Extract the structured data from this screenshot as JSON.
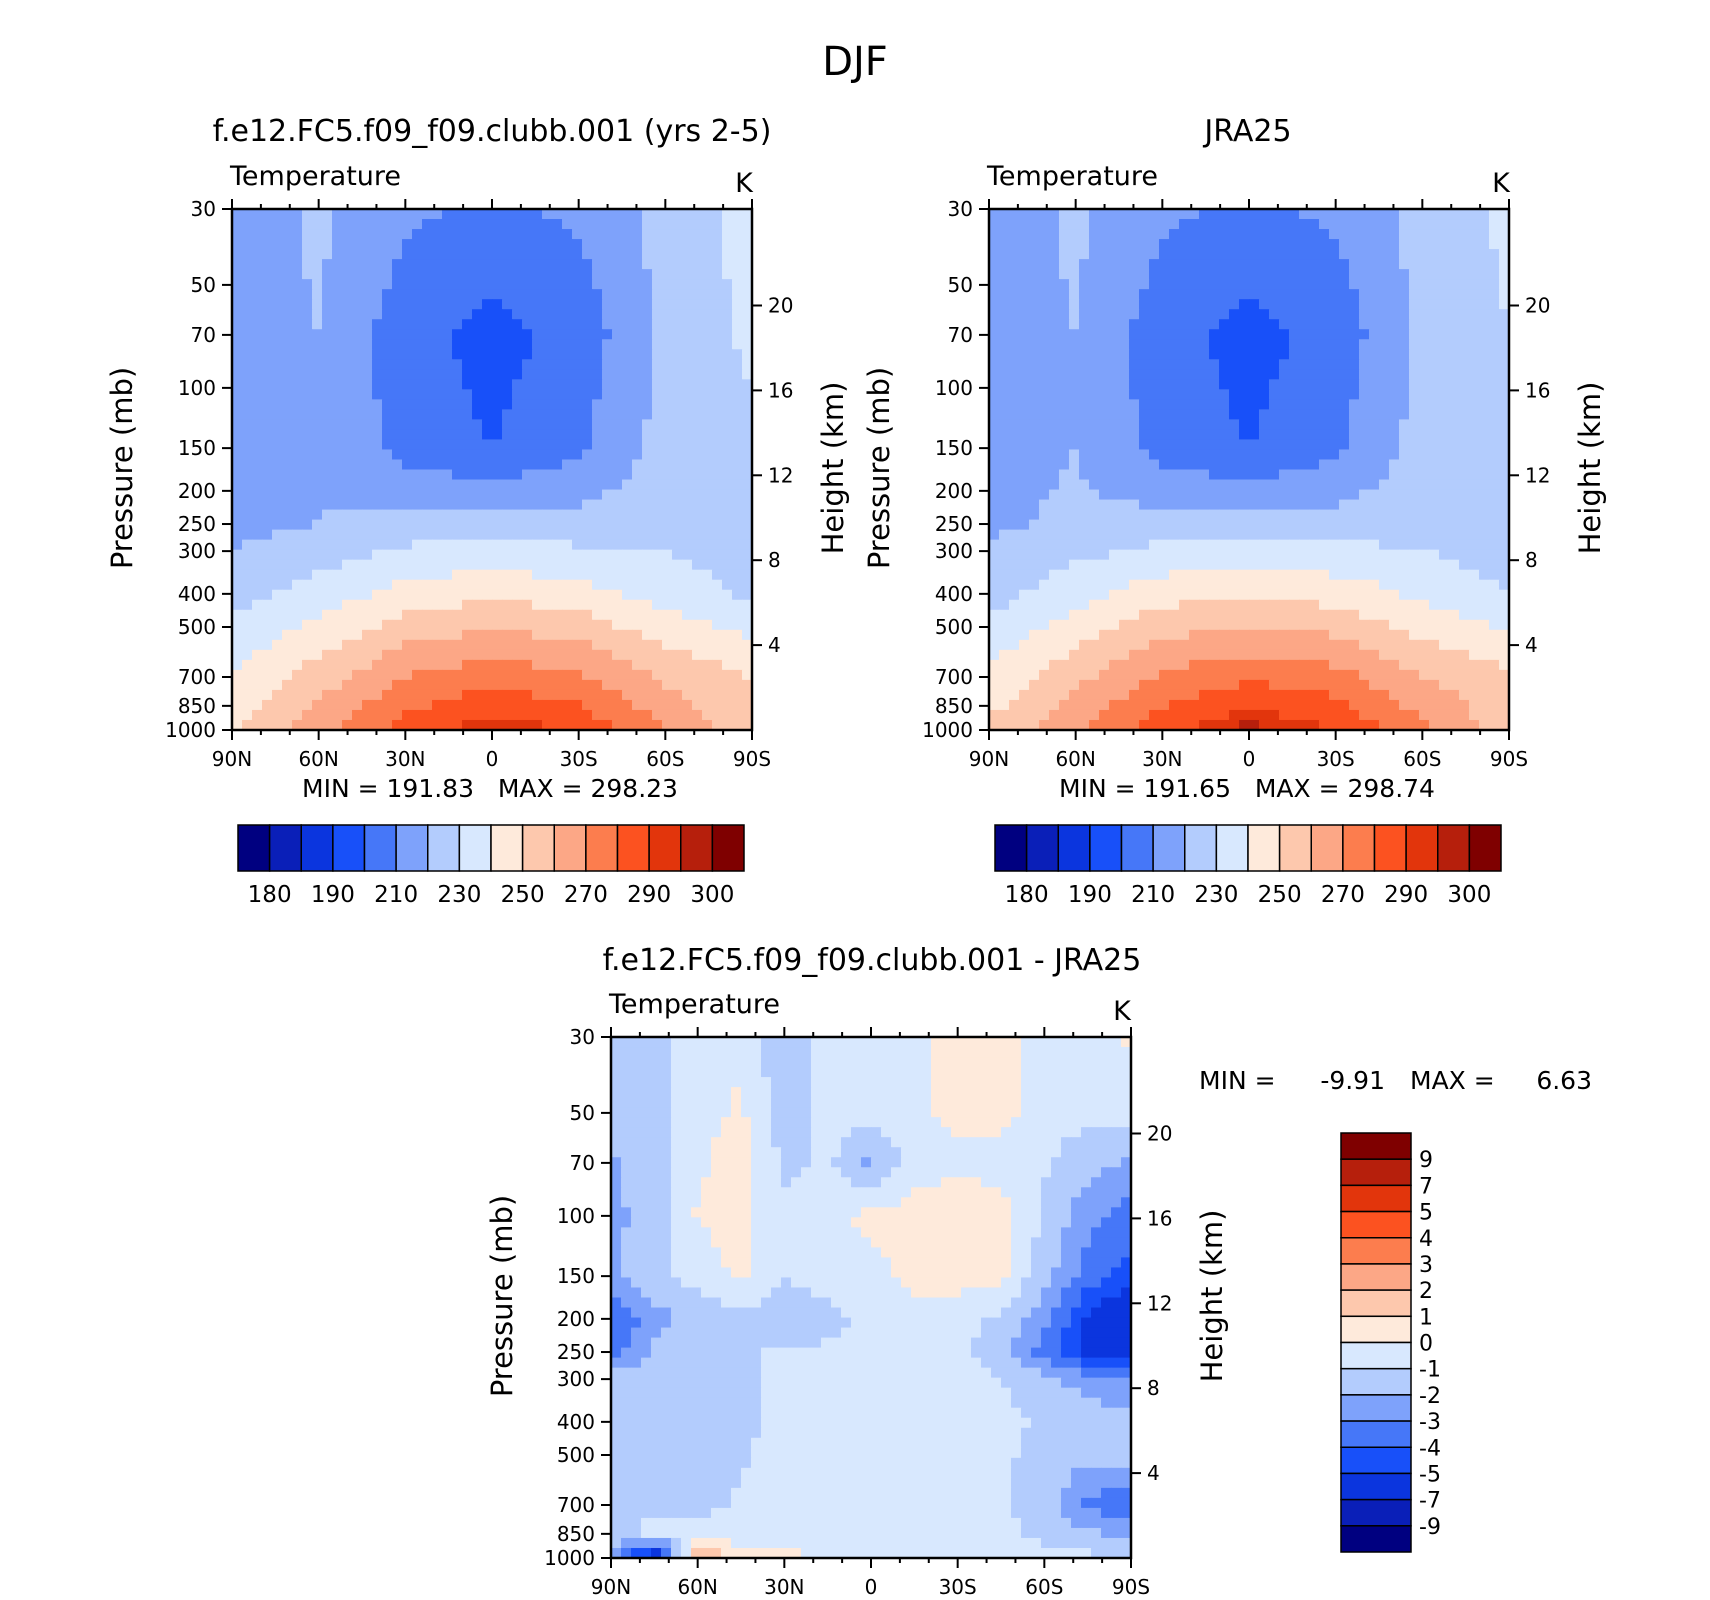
{
  "figure": {
    "title": "DJF"
  },
  "colors": {
    "abs": [
      "#000080",
      "#0a1fb8",
      "#0b35de",
      "#1850f9",
      "#4677f8",
      "#7ea2fb",
      "#b3ccfd",
      "#d8e8fe",
      "#feeadb",
      "#fdc8ad",
      "#fca786",
      "#fc7d4e",
      "#fc5220",
      "#e2350c",
      "#b61f0c",
      "#7f0000"
    ],
    "diff": [
      "#000080",
      "#0a1fb8",
      "#0b35de",
      "#1850f9",
      "#4677f8",
      "#7ea2fb",
      "#b3ccfd",
      "#d8e8fe",
      "#feeadb",
      "#fdc8ad",
      "#fca786",
      "#fc7d4e",
      "#fc5220",
      "#e2350c",
      "#b61f0c",
      "#7f0000"
    ]
  },
  "chart_data": [
    {
      "type": "heatmap",
      "title": "f.e12.FC5.f09_f09.clubb.001 (yrs 2-5)",
      "subtitle_left": "Temperature",
      "units": "K",
      "xlabel": "",
      "ylabel": "Pressure (mb)",
      "ylabel_right": "Height (km)",
      "x_ticks": [
        "90N",
        "60N",
        "30N",
        "0",
        "30S",
        "60S",
        "90S"
      ],
      "y_ticks": [
        "30",
        "50",
        "70",
        "100",
        "150",
        "200",
        "250",
        "300",
        "400",
        "500",
        "700",
        "850",
        "1000"
      ],
      "y_right_ticks": [
        "20",
        "16",
        "12",
        "8",
        "4"
      ],
      "stats": "MIN = 191.83   MAX = 298.23",
      "colorbar_labels": [
        "180",
        "190",
        "210",
        "230",
        "250",
        "270",
        "290",
        "300"
      ],
      "grid": {
        "lat": [
          90,
          60,
          30,
          0,
          -30,
          -60,
          -90
        ],
        "levels_mb": [
          30,
          70,
          150,
          250,
          400,
          700,
          1000
        ],
        "values": [
          [
            214,
            222,
            212,
            208,
            212,
            224,
            234
          ],
          [
            214,
            220,
            204,
            196,
            204,
            222,
            232
          ],
          [
            216,
            220,
            206,
            200,
            208,
            224,
            228
          ],
          [
            217,
            220,
            224,
            224,
            224,
            226,
            224
          ],
          [
            226,
            234,
            244,
            248,
            244,
            236,
            228
          ],
          [
            240,
            255,
            270,
            276,
            272,
            258,
            250
          ],
          [
            250,
            266,
            284,
            296,
            288,
            270,
            252
          ]
        ]
      }
    },
    {
      "type": "heatmap",
      "title": "JRA25",
      "subtitle_left": "Temperature",
      "units": "K",
      "xlabel": "",
      "ylabel": "Pressure (mb)",
      "ylabel_right": "Height (km)",
      "x_ticks": [
        "90N",
        "60N",
        "30N",
        "0",
        "30S",
        "60S",
        "90S"
      ],
      "y_ticks": [
        "30",
        "50",
        "70",
        "100",
        "150",
        "200",
        "250",
        "300",
        "400",
        "500",
        "700",
        "850",
        "1000"
      ],
      "y_right_ticks": [
        "20",
        "16",
        "12",
        "8",
        "4"
      ],
      "stats": "MIN = 191.65   MAX = 298.74",
      "colorbar_labels": [
        "180",
        "190",
        "210",
        "230",
        "250",
        "270",
        "290",
        "300"
      ],
      "grid": {
        "lat": [
          90,
          60,
          30,
          0,
          -30,
          -60,
          -90
        ],
        "levels_mb": [
          30,
          70,
          150,
          250,
          400,
          700,
          1000
        ],
        "values": [
          [
            214,
            222,
            212,
            208,
            212,
            224,
            232
          ],
          [
            214,
            220,
            204,
            196,
            204,
            222,
            230
          ],
          [
            216,
            220,
            206,
            200,
            208,
            224,
            228
          ],
          [
            218,
            222,
            224,
            224,
            224,
            226,
            222
          ],
          [
            226,
            236,
            246,
            248,
            246,
            238,
            230
          ],
          [
            242,
            257,
            272,
            278,
            274,
            260,
            252
          ],
          [
            252,
            268,
            286,
            298,
            290,
            272,
            255
          ]
        ]
      }
    },
    {
      "type": "heatmap",
      "title": "f.e12.FC5.f09_f09.clubb.001 - JRA25",
      "subtitle_left": "Temperature",
      "units": "K",
      "xlabel": "",
      "ylabel": "Pressure (mb)",
      "ylabel_right": "Height (km)",
      "x_ticks": [
        "90N",
        "60N",
        "30N",
        "0",
        "30S",
        "60S",
        "90S"
      ],
      "y_ticks": [
        "30",
        "50",
        "70",
        "100",
        "150",
        "200",
        "250",
        "300",
        "400",
        "500",
        "700",
        "850",
        "1000"
      ],
      "y_right_ticks": [
        "20",
        "16",
        "12",
        "8",
        "4"
      ],
      "stats_min_label": "MIN =",
      "stats_min": "-9.91",
      "stats_max_label": "MAX =",
      "stats_max": "6.63",
      "colorbar_labels": [
        "9",
        "7",
        "5",
        "4",
        "3",
        "2",
        "1",
        "0",
        "-1",
        "-2",
        "-3",
        "-4",
        "-5",
        "-7",
        "-9"
      ],
      "grid": {
        "lat": [
          90,
          75,
          60,
          45,
          30,
          15,
          0,
          -15,
          -30,
          -45,
          -60,
          -75,
          -90
        ],
        "levels_mb": [
          30,
          50,
          70,
          100,
          150,
          200,
          250,
          300,
          400,
          500,
          700,
          850,
          1000
        ],
        "values": [
          [
            -1.5,
            -1.2,
            -0.5,
            -0.3,
            -1.8,
            -0.6,
            -0.4,
            -0.2,
            0.4,
            0.2,
            -0.3,
            -0.4,
            0.2
          ],
          [
            -1.6,
            -1.3,
            -0.4,
            0.2,
            -1.6,
            -0.7,
            -0.6,
            -0.2,
            0.3,
            0.3,
            -0.5,
            -0.8,
            -0.6
          ],
          [
            -2.1,
            -1.4,
            -0.2,
            0.6,
            -1.2,
            -0.8,
            -2.2,
            -0.5,
            -0.2,
            -0.4,
            -0.9,
            -1.6,
            -2.2
          ],
          [
            -2.3,
            -1.5,
            0.1,
            0.4,
            -0.8,
            -0.4,
            0.3,
            0.5,
            0.6,
            0.4,
            -1.2,
            -2.6,
            -3.5
          ],
          [
            -2.2,
            -1.3,
            -0.6,
            0.2,
            -1.0,
            -0.6,
            -0.4,
            0.3,
            0.4,
            0.2,
            -1.6,
            -3.4,
            -4.5
          ],
          [
            -4.2,
            -2.3,
            -1.8,
            -1.2,
            -1.6,
            -1.4,
            -0.6,
            -0.4,
            -0.6,
            -1.2,
            -2.6,
            -5.2,
            -6.5
          ],
          [
            -3.6,
            -1.8,
            -1.2,
            -1.0,
            -1.0,
            -0.8,
            -0.4,
            -0.5,
            -0.8,
            -1.6,
            -3.4,
            -5.4,
            -6.2
          ],
          [
            -1.6,
            -1.1,
            -1.0,
            -1.2,
            -0.8,
            -0.6,
            -0.6,
            -0.6,
            -0.6,
            -1.0,
            -1.6,
            -2.6,
            -3.2
          ],
          [
            -1.4,
            -1.5,
            -1.6,
            -1.3,
            -0.6,
            -0.6,
            -0.6,
            -0.5,
            -0.5,
            -0.7,
            -1.2,
            -1.2,
            -1.5
          ],
          [
            -1.2,
            -1.3,
            -1.4,
            -1.1,
            -0.6,
            -0.5,
            -0.5,
            -0.5,
            -0.5,
            -0.8,
            -1.4,
            -1.7,
            -1.5
          ],
          [
            -1.1,
            -1.1,
            -1.2,
            -0.9,
            -0.6,
            -0.5,
            -0.5,
            -0.6,
            -0.6,
            -0.8,
            -1.5,
            -3.2,
            -4.2
          ],
          [
            -1.4,
            -0.8,
            -0.7,
            -0.7,
            -0.5,
            -0.5,
            -0.5,
            -0.5,
            -0.6,
            -0.8,
            -1.3,
            -1.8,
            -2.2
          ],
          [
            -2.4,
            -6.8,
            2.2,
            0.6,
            0.3,
            -0.3,
            -0.4,
            -0.6,
            -0.4,
            -0.3,
            -0.6,
            -0.8,
            -1.4
          ]
        ]
      }
    }
  ]
}
